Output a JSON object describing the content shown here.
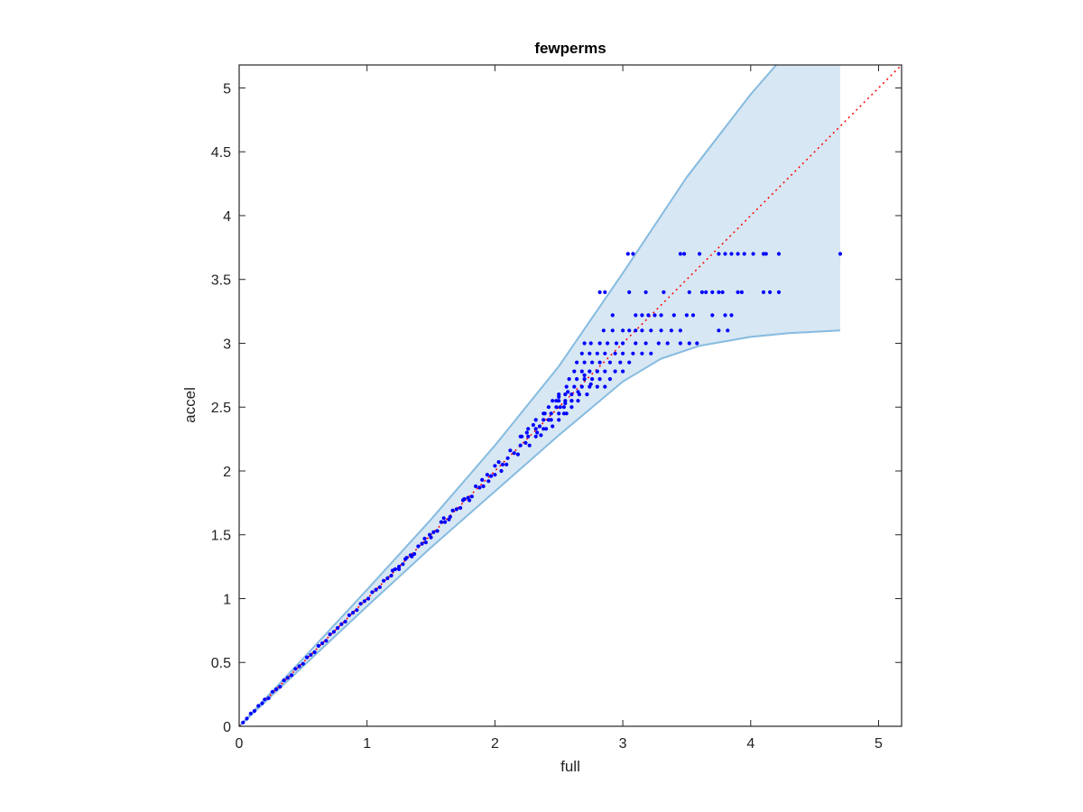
{
  "chart_data": {
    "type": "scatter",
    "title": "fewperms",
    "xlabel": "full",
    "ylabel": "accel",
    "xlim": [
      0,
      5.18
    ],
    "ylim": [
      0,
      5.18
    ],
    "x_ticks": [
      0,
      1,
      2,
      3,
      4,
      5
    ],
    "x_tick_labels": [
      "0",
      "1",
      "2",
      "3",
      "4",
      "5"
    ],
    "y_ticks": [
      0,
      0.5,
      1,
      1.5,
      2,
      2.5,
      3,
      3.5,
      4,
      4.5,
      5
    ],
    "y_tick_labels": [
      "0",
      "0.5",
      "1",
      "1.5",
      "2",
      "2.5",
      "3",
      "3.5",
      "4",
      "4.5",
      "5"
    ],
    "grid": false,
    "colors": {
      "points": "#0000ff",
      "band_fill": "#d7e7f3",
      "band_edge": "#86bbe0",
      "identity_line": "#ff0000",
      "axes": "#262626"
    },
    "band": {
      "upper": [
        [
          0,
          0
        ],
        [
          0.5,
          0.53
        ],
        [
          1,
          1.07
        ],
        [
          1.5,
          1.62
        ],
        [
          2,
          2.2
        ],
        [
          2.5,
          2.82
        ],
        [
          3,
          3.55
        ],
        [
          3.5,
          4.3
        ],
        [
          4,
          4.95
        ],
        [
          4.2,
          5.18
        ],
        [
          4.7,
          5.18
        ]
      ],
      "lower": [
        [
          0,
          0
        ],
        [
          0.5,
          0.47
        ],
        [
          1,
          0.94
        ],
        [
          1.5,
          1.4
        ],
        [
          2,
          1.84
        ],
        [
          2.5,
          2.28
        ],
        [
          3,
          2.7
        ],
        [
          3.3,
          2.88
        ],
        [
          3.6,
          2.98
        ],
        [
          4,
          3.05
        ],
        [
          4.3,
          3.08
        ],
        [
          4.7,
          3.1
        ]
      ]
    },
    "identity_line": [
      [
        0,
        0
      ],
      [
        5.18,
        5.18
      ]
    ],
    "series": [
      {
        "diagonal_points": [
          [
            0.03,
            0.03
          ],
          [
            0.06,
            0.06
          ],
          [
            0.09,
            0.1
          ],
          [
            0.12,
            0.12
          ],
          [
            0.15,
            0.16
          ],
          [
            0.18,
            0.18
          ],
          [
            0.2,
            0.21
          ],
          [
            0.23,
            0.22
          ],
          [
            0.26,
            0.27
          ],
          [
            0.29,
            0.29
          ],
          [
            0.32,
            0.31
          ],
          [
            0.35,
            0.36
          ],
          [
            0.38,
            0.38
          ],
          [
            0.41,
            0.4
          ],
          [
            0.44,
            0.45
          ],
          [
            0.47,
            0.47
          ],
          [
            0.5,
            0.49
          ],
          [
            0.53,
            0.54
          ],
          [
            0.56,
            0.56
          ],
          [
            0.59,
            0.58
          ],
          [
            0.62,
            0.63
          ],
          [
            0.65,
            0.65
          ],
          [
            0.68,
            0.67
          ],
          [
            0.71,
            0.72
          ],
          [
            0.74,
            0.74
          ],
          [
            0.77,
            0.77
          ],
          [
            0.8,
            0.8
          ],
          [
            0.83,
            0.82
          ],
          [
            0.86,
            0.87
          ],
          [
            0.89,
            0.89
          ],
          [
            0.92,
            0.91
          ],
          [
            0.95,
            0.96
          ],
          [
            0.98,
            0.98
          ],
          [
            1.01,
            1.0
          ],
          [
            1.04,
            1.05
          ],
          [
            1.07,
            1.07
          ],
          [
            1.1,
            1.09
          ],
          [
            1.13,
            1.14
          ],
          [
            1.16,
            1.16
          ],
          [
            1.19,
            1.18
          ],
          [
            1.22,
            1.23
          ],
          [
            1.25,
            1.25
          ],
          [
            1.28,
            1.27
          ],
          [
            1.31,
            1.32
          ],
          [
            1.34,
            1.34
          ],
          [
            1.37,
            1.35
          ],
          [
            1.4,
            1.41
          ],
          [
            1.43,
            1.43
          ],
          [
            1.46,
            1.44
          ],
          [
            1.49,
            1.5
          ],
          [
            1.52,
            1.52
          ],
          [
            1.55,
            1.53
          ],
          [
            1.58,
            1.6
          ],
          [
            1.61,
            1.6
          ],
          [
            1.64,
            1.62
          ],
          [
            1.67,
            1.69
          ],
          [
            1.7,
            1.7
          ],
          [
            1.73,
            1.71
          ],
          [
            1.76,
            1.78
          ],
          [
            1.79,
            1.79
          ],
          [
            1.82,
            1.8
          ],
          [
            1.85,
            1.88
          ],
          [
            1.88,
            1.87
          ],
          [
            1.91,
            1.88
          ],
          [
            1.94,
            1.97
          ],
          [
            1.97,
            1.96
          ],
          [
            2.0,
            1.97
          ],
          [
            2.03,
            2.07
          ],
          [
            2.06,
            2.05
          ],
          [
            2.09,
            2.05
          ],
          [
            2.12,
            2.16
          ],
          [
            2.15,
            2.14
          ],
          [
            2.18,
            2.13
          ],
          [
            2.21,
            2.27
          ],
          [
            2.24,
            2.22
          ],
          [
            2.27,
            2.2
          ],
          [
            2.3,
            2.36
          ],
          [
            2.33,
            2.3
          ],
          [
            2.36,
            2.28
          ],
          [
            2.39,
            2.45
          ],
          [
            2.42,
            2.4
          ],
          [
            2.45,
            2.35
          ],
          [
            2.48,
            2.55
          ],
          [
            2.51,
            2.5
          ],
          [
            2.54,
            2.45
          ],
          [
            2.57,
            2.62
          ],
          [
            2.6,
            2.55
          ],
          [
            1.2,
            1.22
          ],
          [
            1.25,
            1.23
          ],
          [
            1.3,
            1.31
          ],
          [
            1.35,
            1.33
          ],
          [
            1.45,
            1.47
          ],
          [
            1.5,
            1.48
          ],
          [
            1.6,
            1.63
          ],
          [
            1.65,
            1.64
          ],
          [
            1.75,
            1.77
          ],
          [
            1.8,
            1.77
          ],
          [
            1.9,
            1.93
          ],
          [
            1.95,
            1.92
          ],
          [
            2.0,
            2.04
          ],
          [
            2.05,
            2.0
          ],
          [
            2.1,
            2.1
          ],
          [
            2.2,
            2.2
          ],
          [
            2.25,
            2.3
          ],
          [
            2.35,
            2.35
          ],
          [
            2.4,
            2.33
          ],
          [
            2.5,
            2.58
          ],
          [
            2.55,
            2.53
          ],
          [
            2.65,
            2.62
          ],
          [
            2.7,
            2.75
          ],
          [
            2.75,
            2.68
          ]
        ],
        "row_y_3p7": [
          [
            3.04,
            3.7
          ],
          [
            3.08,
            3.7
          ],
          [
            3.45,
            3.7
          ],
          [
            3.48,
            3.7
          ],
          [
            3.6,
            3.7
          ],
          [
            3.75,
            3.7
          ],
          [
            3.8,
            3.7
          ],
          [
            3.85,
            3.7
          ],
          [
            3.9,
            3.7
          ],
          [
            3.95,
            3.7
          ],
          [
            4.02,
            3.7
          ],
          [
            4.1,
            3.7
          ],
          [
            4.12,
            3.7
          ],
          [
            4.22,
            3.7
          ],
          [
            4.7,
            3.7
          ]
        ],
        "row_y_3p4": [
          [
            2.82,
            3.4
          ],
          [
            2.86,
            3.4
          ],
          [
            3.05,
            3.4
          ],
          [
            3.18,
            3.4
          ],
          [
            3.32,
            3.4
          ],
          [
            3.52,
            3.4
          ],
          [
            3.62,
            3.4
          ],
          [
            3.65,
            3.4
          ],
          [
            3.7,
            3.4
          ],
          [
            3.75,
            3.4
          ],
          [
            3.78,
            3.4
          ],
          [
            3.9,
            3.4
          ],
          [
            3.93,
            3.4
          ],
          [
            4.1,
            3.4
          ],
          [
            4.15,
            3.4
          ],
          [
            4.22,
            3.4
          ]
        ],
        "row_y_3p22": [
          [
            2.92,
            3.22
          ],
          [
            3.1,
            3.22
          ],
          [
            3.15,
            3.22
          ],
          [
            3.2,
            3.22
          ],
          [
            3.25,
            3.22
          ],
          [
            3.3,
            3.22
          ],
          [
            3.4,
            3.22
          ],
          [
            3.5,
            3.22
          ],
          [
            3.55,
            3.22
          ],
          [
            3.7,
            3.22
          ],
          [
            3.8,
            3.22
          ],
          [
            3.85,
            3.22
          ]
        ],
        "row_y_3p1": [
          [
            2.85,
            3.1
          ],
          [
            2.92,
            3.1
          ],
          [
            3.0,
            3.1
          ],
          [
            3.05,
            3.1
          ],
          [
            3.1,
            3.1
          ],
          [
            3.15,
            3.1
          ],
          [
            3.22,
            3.1
          ],
          [
            3.3,
            3.1
          ],
          [
            3.38,
            3.1
          ],
          [
            3.45,
            3.1
          ],
          [
            3.75,
            3.1
          ],
          [
            3.82,
            3.1
          ]
        ],
        "row_y_3p0": [
          [
            2.7,
            3.0
          ],
          [
            2.75,
            3.0
          ],
          [
            2.82,
            3.0
          ],
          [
            2.88,
            3.0
          ],
          [
            2.95,
            3.0
          ],
          [
            3.0,
            3.0
          ],
          [
            3.1,
            3.0
          ],
          [
            3.18,
            3.0
          ],
          [
            3.28,
            3.0
          ],
          [
            3.35,
            3.0
          ],
          [
            3.45,
            3.0
          ],
          [
            3.52,
            3.0
          ],
          [
            3.58,
            3.0
          ]
        ],
        "row_y_2p92": [
          [
            2.68,
            2.92
          ],
          [
            2.74,
            2.92
          ],
          [
            2.8,
            2.92
          ],
          [
            2.86,
            2.92
          ],
          [
            2.94,
            2.92
          ],
          [
            3.0,
            2.92
          ],
          [
            3.08,
            2.92
          ],
          [
            3.15,
            2.92
          ],
          [
            3.22,
            2.92
          ]
        ],
        "row_y_2p85": [
          [
            2.64,
            2.85
          ],
          [
            2.7,
            2.85
          ],
          [
            2.76,
            2.85
          ],
          [
            2.82,
            2.85
          ],
          [
            2.9,
            2.85
          ],
          [
            2.98,
            2.85
          ],
          [
            3.05,
            2.85
          ]
        ],
        "row_y_2p78": [
          [
            2.62,
            2.78
          ],
          [
            2.68,
            2.78
          ],
          [
            2.74,
            2.78
          ],
          [
            2.8,
            2.78
          ],
          [
            2.86,
            2.78
          ],
          [
            2.94,
            2.78
          ],
          [
            3.0,
            2.78
          ]
        ],
        "row_y_2p72": [
          [
            2.58,
            2.72
          ],
          [
            2.64,
            2.72
          ],
          [
            2.7,
            2.72
          ],
          [
            2.76,
            2.72
          ],
          [
            2.82,
            2.72
          ],
          [
            2.9,
            2.72
          ]
        ],
        "row_y_2p66": [
          [
            2.56,
            2.66
          ],
          [
            2.62,
            2.66
          ],
          [
            2.68,
            2.66
          ],
          [
            2.74,
            2.66
          ],
          [
            2.8,
            2.66
          ],
          [
            2.86,
            2.66
          ]
        ],
        "row_y_2p6": [
          [
            2.5,
            2.6
          ],
          [
            2.55,
            2.6
          ],
          [
            2.6,
            2.6
          ],
          [
            2.66,
            2.6
          ],
          [
            2.72,
            2.6
          ]
        ],
        "row_y_2p55": [
          [
            2.45,
            2.55
          ],
          [
            2.5,
            2.55
          ],
          [
            2.55,
            2.55
          ],
          [
            2.6,
            2.55
          ],
          [
            2.65,
            2.55
          ]
        ],
        "row_y_2p5": [
          [
            2.42,
            2.5
          ],
          [
            2.48,
            2.5
          ],
          [
            2.54,
            2.5
          ],
          [
            2.6,
            2.5
          ]
        ],
        "row_y_2p45": [
          [
            2.38,
            2.45
          ],
          [
            2.44,
            2.45
          ],
          [
            2.5,
            2.45
          ],
          [
            2.56,
            2.45
          ]
        ],
        "row_y_2p4": [
          [
            2.32,
            2.4
          ],
          [
            2.38,
            2.4
          ],
          [
            2.44,
            2.4
          ],
          [
            2.5,
            2.4
          ]
        ],
        "row_y_2p33": [
          [
            2.26,
            2.33
          ],
          [
            2.32,
            2.33
          ],
          [
            2.38,
            2.33
          ]
        ],
        "row_y_2p27": [
          [
            2.2,
            2.27
          ],
          [
            2.26,
            2.27
          ],
          [
            2.32,
            2.27
          ]
        ]
      }
    ]
  }
}
